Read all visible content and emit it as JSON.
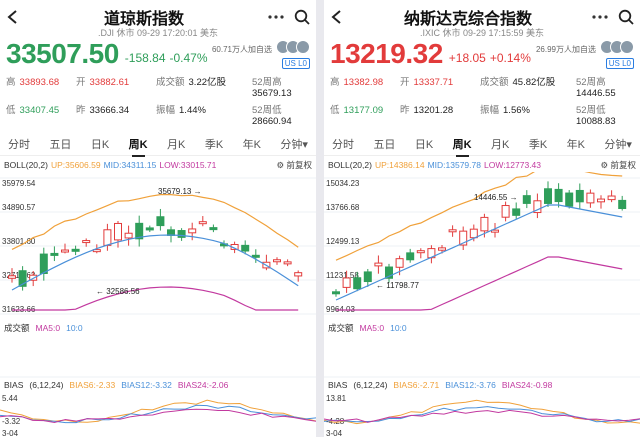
{
  "colors": {
    "up": "#e23b3b",
    "down": "#2f9e5a",
    "upper": "#f0a13a",
    "mid": "#4a90d9",
    "lower": "#c2399f",
    "bias6": "#f0a13a",
    "bias12": "#4a90d9",
    "bias24": "#c2399f",
    "vol": "#c2399f"
  },
  "panels": [
    {
      "title": "道琼斯指数",
      "subtitle": ".DJI 休市 09-29 17:20:01 美东",
      "price": "33507.50",
      "change": "-158.84",
      "change_pct": "-0.47%",
      "followers": "60.71万人加自选",
      "market_badge": "US L0",
      "stats": [
        {
          "k": "高",
          "v": "33893.68",
          "c": "up"
        },
        {
          "k": "开",
          "v": "33882.61",
          "c": "up"
        },
        {
          "k": "成交额",
          "v": "3.22亿股",
          "c": "n"
        },
        {
          "k": "52周高",
          "v": "35679.13",
          "c": "n"
        },
        {
          "k": "低",
          "v": "33407.45",
          "c": "down"
        },
        {
          "k": "昨",
          "v": "33666.34",
          "c": "n"
        },
        {
          "k": "振幅",
          "v": "1.44%",
          "c": "n"
        },
        {
          "k": "52周低",
          "v": "28660.94",
          "c": "n"
        }
      ],
      "tabs": [
        "分时",
        "五日",
        "日K",
        "周K",
        "月K",
        "季K",
        "年K",
        "分钟▾"
      ],
      "active_tab": "周K",
      "boll": {
        "label": "BOLL(20,2)",
        "up": "UP:35606.59",
        "mid": "MID:34311.15",
        "low": "LOW:33015.71",
        "adj": "前复权"
      },
      "y_labels": [
        "35979.54",
        "34890.57",
        "33801.60",
        "32712.63",
        "31623.66"
      ],
      "max_label": "35679.13",
      "min_label": "32586.56",
      "vol_label": "成交额",
      "ma5": "MA5:0",
      "ma10": "10:0",
      "bias_header": [
        "BIAS",
        "(6,12,24)",
        "BIAS6:-2.33",
        "BIAS12:-3.32",
        "BIAS24:-2.06"
      ],
      "bias_top": "5.44",
      "bias_bottom": "-3.32",
      "date_label": "3-04"
    },
    {
      "title": "纳斯达克综合指数",
      "subtitle": ".IXIC 休市 09-29 17:15:59 美东",
      "price": "13219.32",
      "change": "+18.05",
      "change_pct": "+0.14%",
      "followers": "26.99万人加自选",
      "market_badge": "US L0",
      "stats": [
        {
          "k": "高",
          "v": "13382.98",
          "c": "up"
        },
        {
          "k": "开",
          "v": "13337.71",
          "c": "up"
        },
        {
          "k": "成交额",
          "v": "45.82亿股",
          "c": "n"
        },
        {
          "k": "52周高",
          "v": "14446.55",
          "c": "n"
        },
        {
          "k": "低",
          "v": "13177.09",
          "c": "down"
        },
        {
          "k": "昨",
          "v": "13201.28",
          "c": "n"
        },
        {
          "k": "振幅",
          "v": "1.56%",
          "c": "n"
        },
        {
          "k": "52周低",
          "v": "10088.83",
          "c": "n"
        }
      ],
      "tabs": [
        "分时",
        "五日",
        "日K",
        "周K",
        "月K",
        "季K",
        "年K",
        "分钟▾"
      ],
      "active_tab": "周K",
      "boll": {
        "label": "BOLL(20,2)",
        "up": "UP:14386.14",
        "mid": "MID:13579.78",
        "low": "LOW:12773.43",
        "adj": "前复权"
      },
      "y_labels": [
        "15034.23",
        "13766.68",
        "12499.13",
        "11231.58",
        "9964.03"
      ],
      "max_label": "14446.55",
      "min_label": "11798.77",
      "vol_label": "成交额",
      "ma5": "MA5:0",
      "ma10": "10:0",
      "bias_header": [
        "BIAS",
        "(6,12,24)",
        "BIAS6:-2.71",
        "BIAS12:-3.76",
        "BIAS24:-0.98"
      ],
      "bias_top": "13.81",
      "bias_bottom": "-4.28",
      "date_label": "3-04"
    }
  ]
}
